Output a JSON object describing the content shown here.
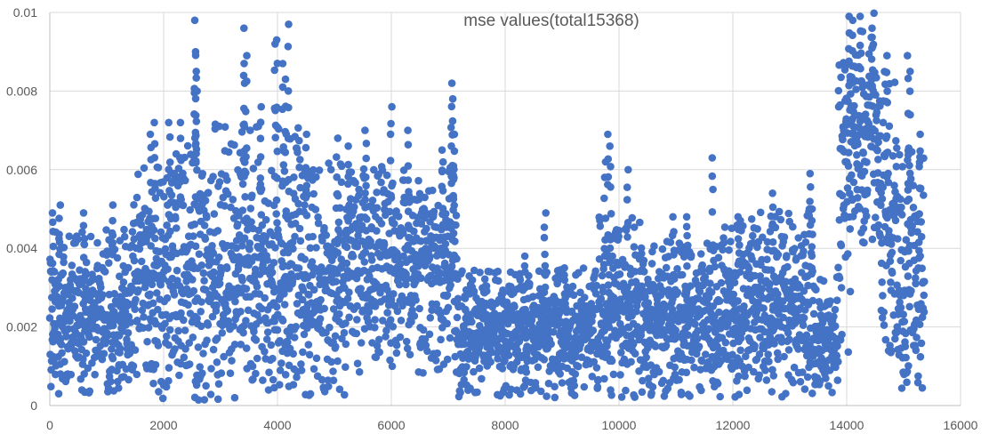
{
  "chart_data": {
    "type": "scatter",
    "title": "mse values(total15368)",
    "xlabel": "",
    "ylabel": "",
    "xlim": [
      0,
      16000
    ],
    "ylim": [
      0,
      0.01
    ],
    "x_ticks": [
      0,
      2000,
      4000,
      6000,
      8000,
      10000,
      12000,
      14000,
      16000
    ],
    "x_tick_labels": [
      "0",
      "2000",
      "4000",
      "6000",
      "8000",
      "10000",
      "12000",
      "14000",
      "16000"
    ],
    "y_ticks": [
      0,
      0.002,
      0.004,
      0.006,
      0.008,
      0.01
    ],
    "y_tick_labels": [
      "0",
      "0.002",
      "0.004",
      "0.006",
      "0.008",
      "0.01"
    ],
    "grid": true,
    "legend": "none",
    "marker_color": "#4472C4",
    "total_points": 15368,
    "segments": [
      {
        "x": [
          0,
          1450
        ],
        "y_range": [
          0.0003,
          0.0045
        ],
        "center": 0.0022,
        "outliers": [
          [
            50,
            0.0049
          ],
          [
            170,
            0.0051
          ],
          [
            600,
            0.0049
          ],
          [
            1100,
            0.0051
          ]
        ]
      },
      {
        "x": [
          1450,
          1800
        ],
        "y_range": [
          0.0006,
          0.0062
        ],
        "center": 0.0035,
        "outliers": [
          [
            1780,
            0.0069
          ]
        ]
      },
      {
        "x": [
          1800,
          2800
        ],
        "y_range": [
          0.0001,
          0.0068
        ],
        "center": 0.0032,
        "outliers": [
          [
            1850,
            0.0072
          ],
          [
            2100,
            0.0072
          ],
          [
            2300,
            0.0072
          ],
          [
            2550,
            0.0098
          ],
          [
            2560,
            0.009
          ],
          [
            2570,
            0.0085
          ],
          [
            2580,
            0.008
          ]
        ]
      },
      {
        "x": [
          2800,
          4400
        ],
        "y_range": [
          0.0001,
          0.0072
        ],
        "center": 0.0032,
        "outliers": [
          [
            3400,
            0.0096
          ],
          [
            3420,
            0.0082
          ],
          [
            3450,
            0.0089
          ],
          [
            3700,
            0.0076
          ],
          [
            3950,
            0.0092
          ],
          [
            4000,
            0.0093
          ],
          [
            4200,
            0.0097
          ],
          [
            4150,
            0.0083
          ],
          [
            4100,
            0.0087
          ]
        ]
      },
      {
        "x": [
          4400,
          5300
        ],
        "y_range": [
          0.0002,
          0.0062
        ],
        "center": 0.0032,
        "outliers": [
          [
            4500,
            0.0069
          ],
          [
            5050,
            0.0068
          ],
          [
            5250,
            0.0066
          ]
        ]
      },
      {
        "x": [
          5300,
          7150
        ],
        "y_range": [
          0.0008,
          0.0062
        ],
        "center": 0.0036,
        "outliers": [
          [
            5550,
            0.007
          ],
          [
            6000,
            0.0076
          ],
          [
            6300,
            0.007
          ],
          [
            6900,
            0.0065
          ],
          [
            7050,
            0.0082
          ],
          [
            7080,
            0.0078
          ],
          [
            7100,
            0.0069
          ]
        ]
      },
      {
        "x": [
          7150,
          9650
        ],
        "y_range": [
          0.0002,
          0.0035
        ],
        "center": 0.0019,
        "outliers": [
          [
            8350,
            0.0038
          ],
          [
            8700,
            0.0049
          ],
          [
            9050,
            0.0035
          ]
        ]
      },
      {
        "x": [
          9650,
          10400
        ],
        "y_range": [
          0.0002,
          0.0048
        ],
        "center": 0.0022,
        "outliers": [
          [
            9800,
            0.0069
          ],
          [
            9850,
            0.0066
          ],
          [
            9750,
            0.0062
          ],
          [
            10150,
            0.006
          ]
        ]
      },
      {
        "x": [
          10400,
          11800
        ],
        "y_range": [
          0.0002,
          0.0042
        ],
        "center": 0.0021,
        "outliers": [
          [
            11650,
            0.0063
          ],
          [
            10950,
            0.0048
          ],
          [
            11200,
            0.0048
          ]
        ]
      },
      {
        "x": [
          11800,
          13400
        ],
        "y_range": [
          0.0002,
          0.005
        ],
        "center": 0.0024,
        "outliers": [
          [
            12100,
            0.0048
          ],
          [
            12700,
            0.0054
          ],
          [
            13350,
            0.0059
          ]
        ]
      },
      {
        "x": [
          13400,
          13850
        ],
        "y_range": [
          0.0003,
          0.0033
        ],
        "center": 0.0016,
        "outliers": [
          [
            13400,
            0.005
          ]
        ]
      },
      {
        "x": [
          13850,
          14150
        ],
        "y_range": [
          0.0012,
          0.0088
        ],
        "center": 0.0065,
        "outliers": [
          [
            14050,
            0.0099
          ],
          [
            14100,
            0.0098
          ]
        ]
      },
      {
        "x": [
          14150,
          14600
        ],
        "y_range": [
          0.004,
          0.01
        ],
        "center": 0.0072,
        "outliers": [
          [
            14250,
            0.0099
          ],
          [
            14450,
            0.0096
          ]
        ]
      },
      {
        "x": [
          14600,
          14900
        ],
        "y_range": [
          0.0012,
          0.0085
        ],
        "center": 0.005,
        "outliers": [
          [
            14700,
            0.0089
          ]
        ]
      },
      {
        "x": [
          14900,
          15368
        ],
        "y_range": [
          0.0003,
          0.0065
        ],
        "center": 0.003,
        "outliers": [
          [
            15080,
            0.0089
          ],
          [
            15100,
            0.0085
          ],
          [
            15280,
            0.0069
          ]
        ]
      }
    ]
  }
}
